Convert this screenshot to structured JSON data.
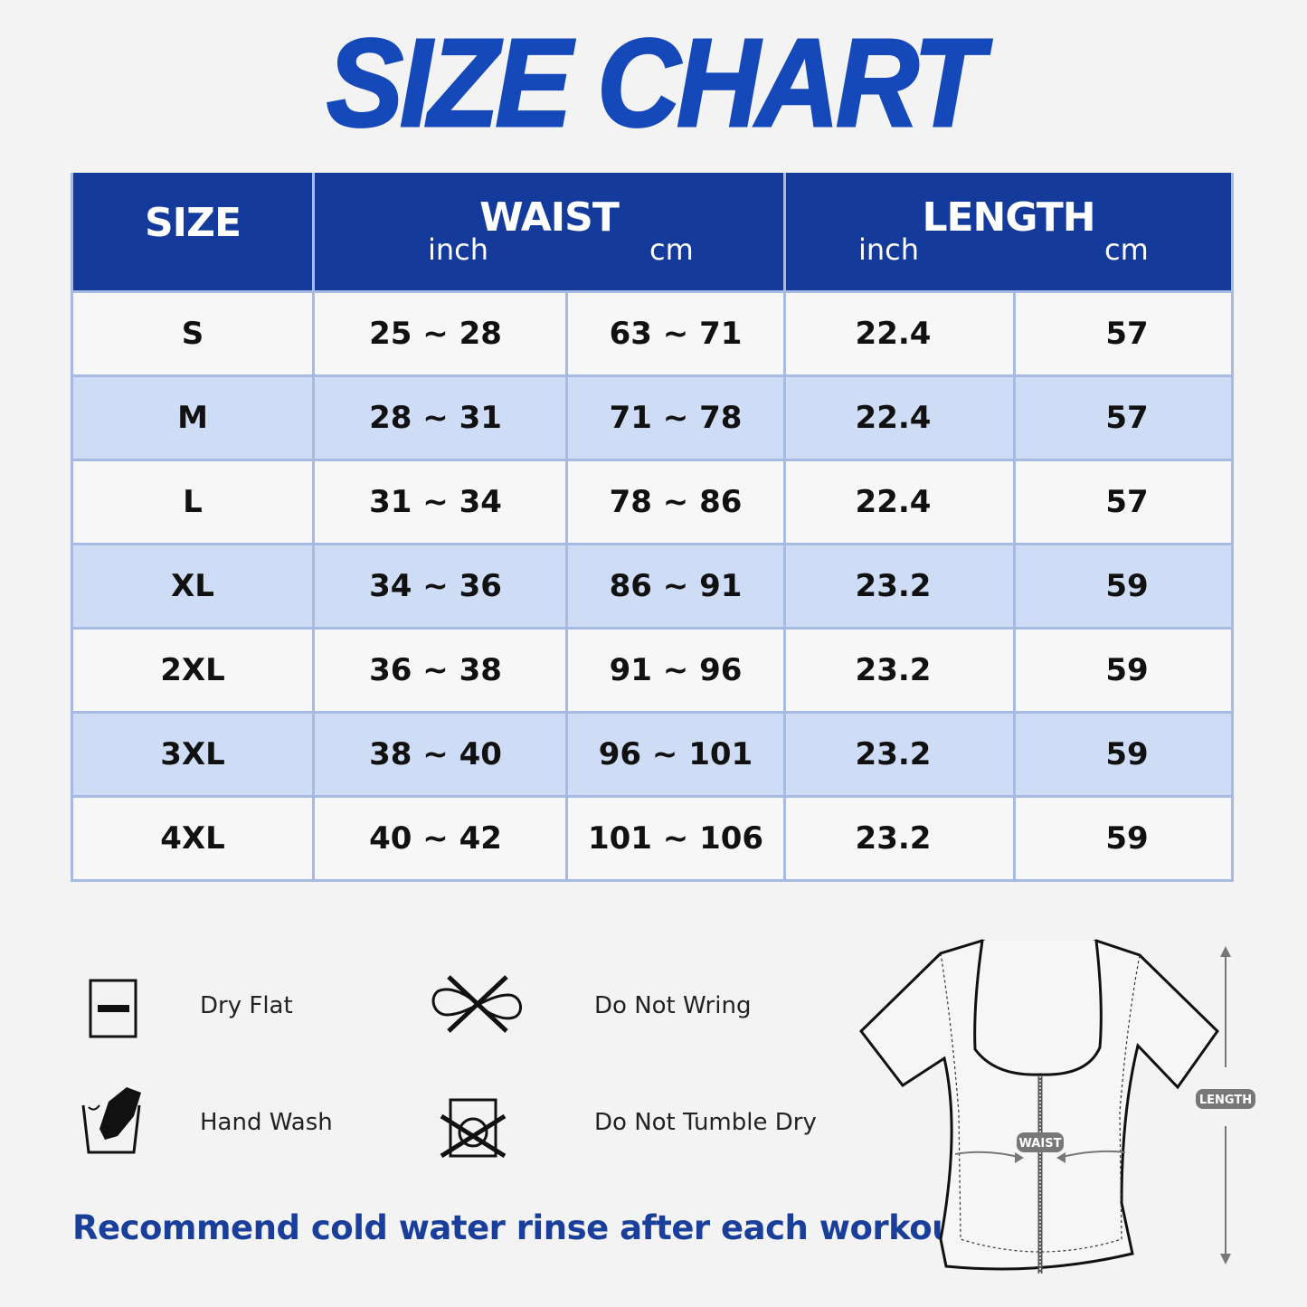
{
  "title": "SIZE CHART",
  "table": {
    "headers": {
      "size": "SIZE",
      "waist": "WAIST",
      "length": "LENGTH",
      "inch": "inch",
      "cm": "cm"
    },
    "rows": [
      {
        "size": "S",
        "waist_inch": "25 ~ 28",
        "waist_cm": "63 ~ 71",
        "length_inch": "22.4",
        "length_cm": "57"
      },
      {
        "size": "M",
        "waist_inch": "28 ~ 31",
        "waist_cm": "71 ~ 78",
        "length_inch": "22.4",
        "length_cm": "57"
      },
      {
        "size": "L",
        "waist_inch": "31 ~ 34",
        "waist_cm": "78 ~ 86",
        "length_inch": "22.4",
        "length_cm": "57"
      },
      {
        "size": "XL",
        "waist_inch": "34 ~ 36",
        "waist_cm": "86 ~ 91",
        "length_inch": "23.2",
        "length_cm": "59"
      },
      {
        "size": "2XL",
        "waist_inch": "36 ~ 38",
        "waist_cm": "91 ~ 96",
        "length_inch": "23.2",
        "length_cm": "59"
      },
      {
        "size": "3XL",
        "waist_inch": "38 ~ 40",
        "waist_cm": "96 ~ 101",
        "length_inch": "23.2",
        "length_cm": "59"
      },
      {
        "size": "4XL",
        "waist_inch": "40 ~ 42",
        "waist_cm": "101 ~ 106",
        "length_inch": "23.2",
        "length_cm": "59"
      }
    ]
  },
  "care": [
    {
      "label": "Dry Flat",
      "icon": "dry-flat-icon"
    },
    {
      "label": "Do Not Wring",
      "icon": "do-not-wring-icon"
    },
    {
      "label": "Hand Wash",
      "icon": "hand-wash-icon"
    },
    {
      "label": "Do Not Tumble Dry",
      "icon": "do-not-tumble-dry-icon"
    }
  ],
  "note": "Recommend cold water rinse after each workout.",
  "diagram": {
    "waist_label": "WAIST",
    "length_label": "LENGTH"
  },
  "colors": {
    "title": "#1548b8",
    "header": "#143b9c",
    "alt_row": "#cedcf6",
    "note": "#1a3f9a"
  }
}
